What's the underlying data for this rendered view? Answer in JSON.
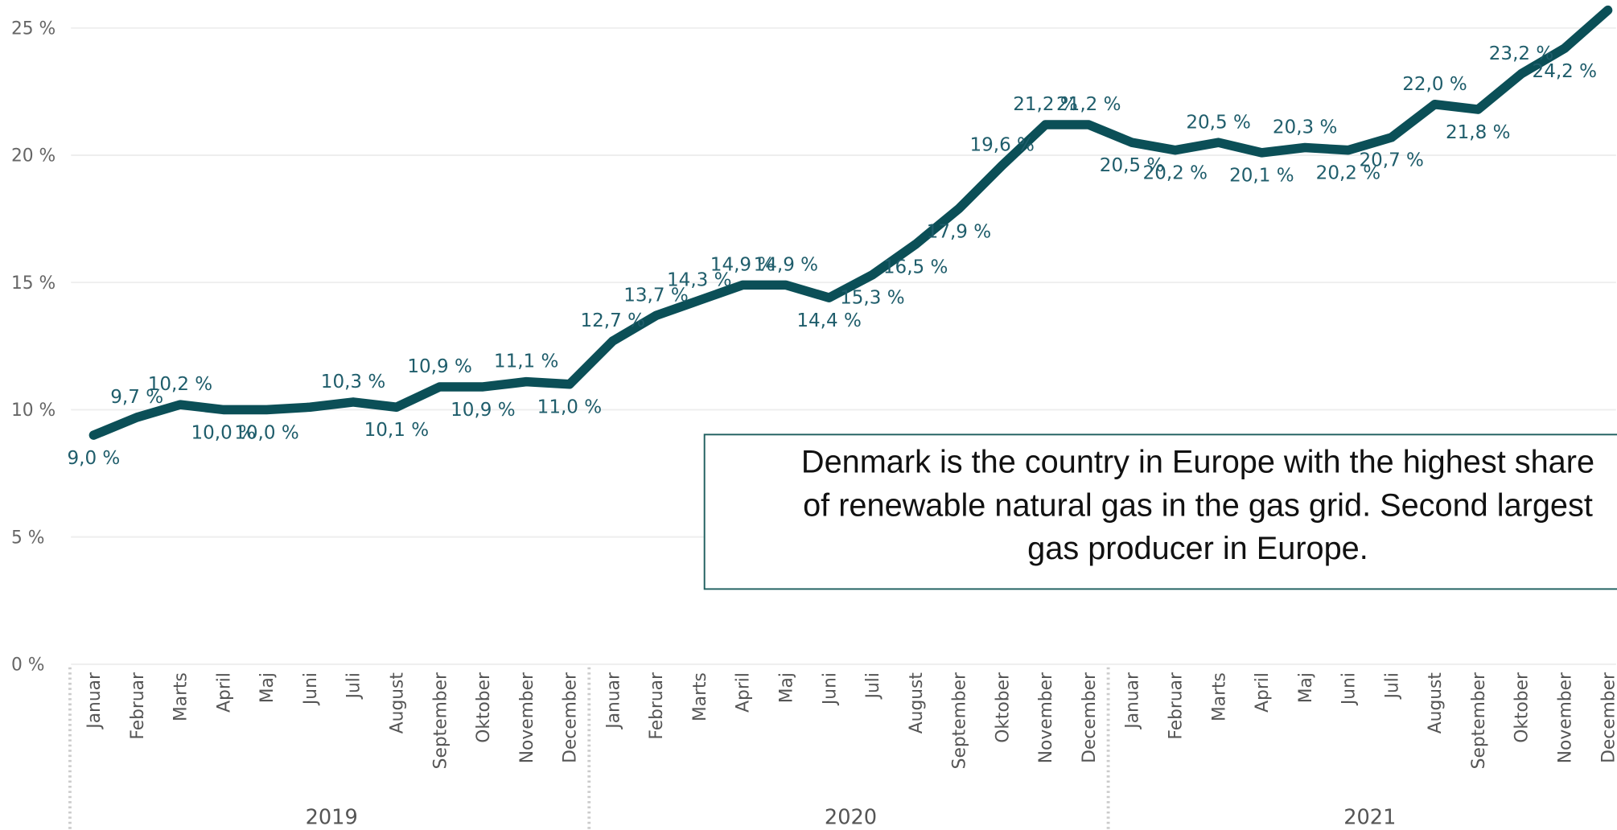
{
  "chart_data": {
    "type": "line",
    "categories": [
      "Januar",
      "Februar",
      "Marts",
      "April",
      "Maj",
      "Juni",
      "Juli",
      "August",
      "September",
      "Oktober",
      "November",
      "December",
      "Januar",
      "Februar",
      "Marts",
      "April",
      "Maj",
      "Juni",
      "Juli",
      "August",
      "September",
      "Oktober",
      "November",
      "December",
      "Januar",
      "Februar",
      "Marts",
      "April",
      "Maj",
      "Juni",
      "Juli",
      "August",
      "September",
      "Oktober",
      "November",
      "December"
    ],
    "year_labels": [
      "2019",
      "2020",
      "2021"
    ],
    "series": [
      {
        "name": "Andel",
        "color": "#0b4f57",
        "values": [
          9.0,
          9.7,
          10.2,
          10.0,
          10.0,
          10.1,
          10.3,
          10.1,
          10.9,
          10.9,
          11.1,
          11.0,
          12.7,
          13.7,
          14.3,
          14.9,
          14.9,
          14.4,
          15.3,
          16.5,
          17.9,
          19.6,
          21.2,
          21.2,
          20.5,
          20.2,
          20.5,
          20.1,
          20.3,
          20.2,
          20.7,
          22.0,
          21.8,
          23.2,
          24.2,
          25.7
        ],
        "value_labels": [
          "9,0 %",
          "9,7 %",
          "10,2 %",
          "10,0 %",
          "10,0 %",
          null,
          "10,3 %",
          "10,1 %",
          "10,9 %",
          "10,9 %",
          "11,1 %",
          "11,0 %",
          "12,7 %",
          "13,7 %",
          "14,3 %",
          "14,9 %",
          "14,9 %",
          "14,4 %",
          "15,3 %",
          "16,5 %",
          "17,9 %",
          "19,6 %",
          "21,2 %",
          "21,2 %",
          "20,5 %",
          "20,2 %",
          "20,5 %",
          "20,1 %",
          "20,3 %",
          "20,2 %",
          "20,7 %",
          "22,0 %",
          "21,8 %",
          "23,2 %",
          "24,2 %",
          "25,7 %"
        ]
      }
    ],
    "ylim": [
      0,
      26.1
    ],
    "yticks": [
      {
        "value": 0,
        "label": "0 %"
      },
      {
        "value": 5,
        "label": "5 %"
      },
      {
        "value": 10,
        "label": "10 %"
      },
      {
        "value": 15,
        "label": "15 %"
      },
      {
        "value": 20,
        "label": "20 %"
      },
      {
        "value": 25,
        "label": "25 %"
      }
    ],
    "grid": true,
    "annotation": [
      "Denmark is the country in Europe with the highest share",
      "of renewable natural gas in the gas grid. Second largest",
      "gas producer in Europe."
    ]
  }
}
